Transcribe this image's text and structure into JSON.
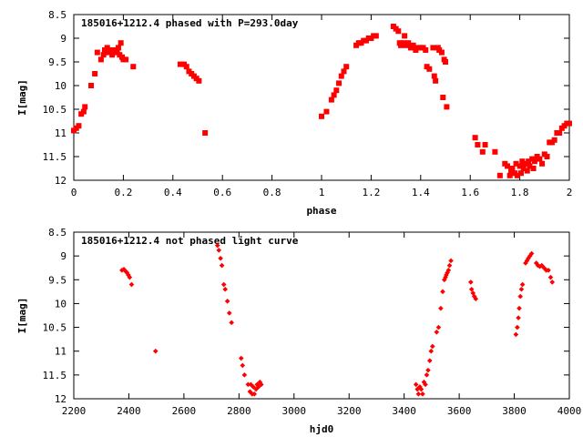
{
  "chart_data": [
    {
      "type": "scatter",
      "title": "185016+1212.4 phased with P=293.0day",
      "xlabel": "phase",
      "ylabel": "I[mag]",
      "xlim": [
        0,
        2
      ],
      "ylim": [
        8.5,
        12
      ],
      "y_inverted": true,
      "x_ticks": [
        0,
        0.2,
        0.4,
        0.6,
        0.8,
        1,
        1.2,
        1.4,
        1.6,
        1.8,
        2
      ],
      "y_ticks": [
        8.5,
        9,
        9.5,
        10,
        10.5,
        11,
        11.5,
        12
      ],
      "marker": "filled-square",
      "color": "#ff0000",
      "grid": false,
      "series": [
        {
          "points": [
            [
              0.0,
              10.95
            ],
            [
              0.01,
              10.9
            ],
            [
              0.02,
              10.85
            ],
            [
              0.03,
              10.6
            ],
            [
              0.04,
              10.55
            ],
            [
              0.045,
              10.45
            ],
            [
              0.07,
              10.0
            ],
            [
              0.085,
              9.75
            ],
            [
              0.095,
              9.3
            ],
            [
              0.11,
              9.45
            ],
            [
              0.12,
              9.35
            ],
            [
              0.125,
              9.25
            ],
            [
              0.135,
              9.2
            ],
            [
              0.14,
              9.3
            ],
            [
              0.15,
              9.25
            ],
            [
              0.155,
              9.35
            ],
            [
              0.16,
              9.3
            ],
            [
              0.17,
              9.25
            ],
            [
              0.175,
              9.3
            ],
            [
              0.18,
              9.2
            ],
            [
              0.185,
              9.35
            ],
            [
              0.19,
              9.1
            ],
            [
              0.195,
              9.4
            ],
            [
              0.2,
              9.45
            ],
            [
              0.21,
              9.45
            ],
            [
              0.24,
              9.6
            ],
            [
              0.43,
              9.55
            ],
            [
              0.445,
              9.55
            ],
            [
              0.455,
              9.6
            ],
            [
              0.465,
              9.7
            ],
            [
              0.475,
              9.75
            ],
            [
              0.485,
              9.8
            ],
            [
              0.495,
              9.85
            ],
            [
              0.505,
              9.9
            ],
            [
              0.53,
              11.0
            ],
            [
              1.0,
              10.65
            ],
            [
              1.02,
              10.55
            ],
            [
              1.04,
              10.3
            ],
            [
              1.05,
              10.2
            ],
            [
              1.06,
              10.1
            ],
            [
              1.07,
              9.95
            ],
            [
              1.08,
              9.8
            ],
            [
              1.09,
              9.7
            ],
            [
              1.1,
              9.6
            ],
            [
              1.14,
              9.15
            ],
            [
              1.15,
              9.1
            ],
            [
              1.16,
              9.1
            ],
            [
              1.17,
              9.05
            ],
            [
              1.18,
              9.05
            ],
            [
              1.19,
              9.0
            ],
            [
              1.2,
              9.0
            ],
            [
              1.21,
              8.95
            ],
            [
              1.22,
              8.95
            ],
            [
              1.29,
              8.75
            ],
            [
              1.3,
              8.8
            ],
            [
              1.31,
              8.85
            ],
            [
              1.315,
              9.1
            ],
            [
              1.32,
              9.15
            ],
            [
              1.33,
              9.1
            ],
            [
              1.335,
              8.95
            ],
            [
              1.34,
              9.15
            ],
            [
              1.35,
              9.1
            ],
            [
              1.36,
              9.2
            ],
            [
              1.37,
              9.15
            ],
            [
              1.38,
              9.25
            ],
            [
              1.39,
              9.2
            ],
            [
              1.4,
              9.2
            ],
            [
              1.41,
              9.2
            ],
            [
              1.42,
              9.25
            ],
            [
              1.425,
              9.6
            ],
            [
              1.435,
              9.65
            ],
            [
              1.45,
              9.2
            ],
            [
              1.455,
              9.8
            ],
            [
              1.46,
              9.9
            ],
            [
              1.47,
              9.2
            ],
            [
              1.475,
              9.25
            ],
            [
              1.485,
              9.3
            ],
            [
              1.49,
              10.25
            ],
            [
              1.495,
              9.45
            ],
            [
              1.5,
              9.5
            ],
            [
              1.505,
              10.45
            ],
            [
              1.62,
              11.1
            ],
            [
              1.63,
              11.25
            ],
            [
              1.65,
              11.4
            ],
            [
              1.66,
              11.25
            ],
            [
              1.7,
              11.4
            ],
            [
              1.72,
              11.9
            ],
            [
              1.74,
              11.65
            ],
            [
              1.75,
              11.7
            ],
            [
              1.76,
              11.9
            ],
            [
              1.765,
              11.8
            ],
            [
              1.77,
              11.75
            ],
            [
              1.78,
              11.85
            ],
            [
              1.785,
              11.65
            ],
            [
              1.79,
              11.9
            ],
            [
              1.8,
              11.7
            ],
            [
              1.805,
              11.85
            ],
            [
              1.81,
              11.6
            ],
            [
              1.815,
              11.75
            ],
            [
              1.82,
              11.65
            ],
            [
              1.83,
              11.8
            ],
            [
              1.835,
              11.6
            ],
            [
              1.84,
              11.7
            ],
            [
              1.85,
              11.55
            ],
            [
              1.855,
              11.75
            ],
            [
              1.86,
              11.6
            ],
            [
              1.87,
              11.5
            ],
            [
              1.88,
              11.55
            ],
            [
              1.89,
              11.65
            ],
            [
              1.9,
              11.45
            ],
            [
              1.91,
              11.5
            ],
            [
              1.92,
              11.2
            ],
            [
              1.93,
              11.2
            ],
            [
              1.94,
              11.15
            ],
            [
              1.95,
              11.0
            ],
            [
              1.96,
              11.0
            ],
            [
              1.97,
              10.9
            ],
            [
              1.98,
              10.85
            ],
            [
              1.99,
              10.8
            ],
            [
              2.0,
              10.8
            ]
          ]
        }
      ]
    },
    {
      "type": "scatter",
      "title": "185016+1212.4 not phased light curve",
      "xlabel": "hjd0",
      "ylabel": "I[mag]",
      "xlim": [
        2200,
        4000
      ],
      "ylim": [
        8.5,
        12
      ],
      "y_inverted": true,
      "x_ticks": [
        2200,
        2400,
        2600,
        2800,
        3000,
        3200,
        3400,
        3600,
        3800,
        4000
      ],
      "y_ticks": [
        8.5,
        9,
        9.5,
        10,
        10.5,
        11,
        11.5,
        12
      ],
      "marker": "filled-diamond",
      "color": "#ff0000",
      "grid": false,
      "series": [
        {
          "points": [
            [
              2375,
              9.3
            ],
            [
              2382,
              9.28
            ],
            [
              2388,
              9.32
            ],
            [
              2393,
              9.35
            ],
            [
              2398,
              9.4
            ],
            [
              2403,
              9.45
            ],
            [
              2410,
              9.6
            ],
            [
              2497,
              11.0
            ],
            [
              2722,
              8.78
            ],
            [
              2727,
              8.88
            ],
            [
              2733,
              9.05
            ],
            [
              2738,
              9.2
            ],
            [
              2745,
              9.6
            ],
            [
              2750,
              9.7
            ],
            [
              2758,
              9.95
            ],
            [
              2765,
              10.2
            ],
            [
              2773,
              10.4
            ],
            [
              2808,
              11.15
            ],
            [
              2813,
              11.3
            ],
            [
              2820,
              11.5
            ],
            [
              2833,
              11.7
            ],
            [
              2840,
              11.85
            ],
            [
              2843,
              11.7
            ],
            [
              2848,
              11.9
            ],
            [
              2852,
              11.75
            ],
            [
              2856,
              11.9
            ],
            [
              2862,
              11.8
            ],
            [
              2866,
              11.7
            ],
            [
              2871,
              11.75
            ],
            [
              2876,
              11.65
            ],
            [
              2881,
              11.7
            ],
            [
              3443,
              11.7
            ],
            [
              3448,
              11.8
            ],
            [
              3452,
              11.9
            ],
            [
              3457,
              11.75
            ],
            [
              3462,
              11.8
            ],
            [
              3467,
              11.9
            ],
            [
              3472,
              11.65
            ],
            [
              3477,
              11.7
            ],
            [
              3482,
              11.5
            ],
            [
              3487,
              11.4
            ],
            [
              3493,
              11.2
            ],
            [
              3498,
              11.0
            ],
            [
              3503,
              10.9
            ],
            [
              3518,
              10.6
            ],
            [
              3525,
              10.5
            ],
            [
              3533,
              10.1
            ],
            [
              3540,
              9.75
            ],
            [
              3546,
              9.5
            ],
            [
              3550,
              9.45
            ],
            [
              3553,
              9.4
            ],
            [
              3557,
              9.35
            ],
            [
              3561,
              9.3
            ],
            [
              3565,
              9.2
            ],
            [
              3570,
              9.1
            ],
            [
              3642,
              9.55
            ],
            [
              3645,
              9.7
            ],
            [
              3650,
              9.78
            ],
            [
              3655,
              9.85
            ],
            [
              3660,
              9.9
            ],
            [
              3806,
              10.65
            ],
            [
              3811,
              10.5
            ],
            [
              3815,
              10.3
            ],
            [
              3818,
              10.1
            ],
            [
              3822,
              9.85
            ],
            [
              3826,
              9.7
            ],
            [
              3830,
              9.6
            ],
            [
              3841,
              9.15
            ],
            [
              3846,
              9.1
            ],
            [
              3851,
              9.05
            ],
            [
              3857,
              9.0
            ],
            [
              3863,
              8.95
            ],
            [
              3880,
              9.15
            ],
            [
              3886,
              9.2
            ],
            [
              3893,
              9.22
            ],
            [
              3900,
              9.2
            ],
            [
              3908,
              9.25
            ],
            [
              3916,
              9.3
            ],
            [
              3924,
              9.3
            ],
            [
              3932,
              9.45
            ],
            [
              3938,
              9.55
            ]
          ]
        }
      ]
    }
  ]
}
